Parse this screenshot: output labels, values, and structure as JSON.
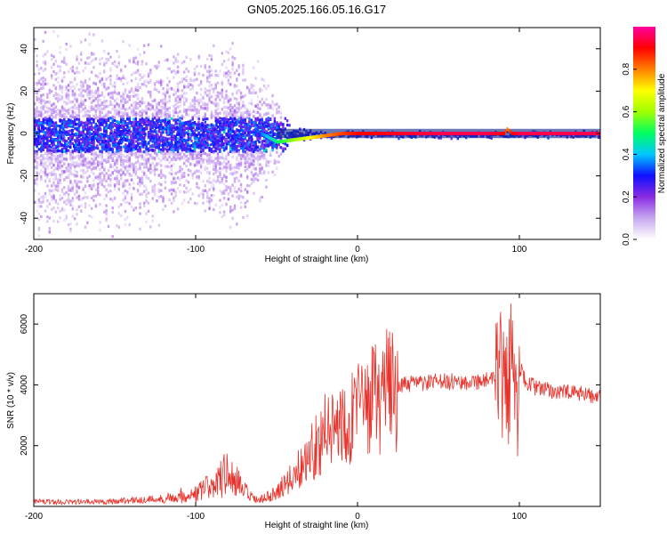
{
  "chart_data": [
    {
      "type": "heatmap",
      "title": "GN05.2025.166.05.16.G17",
      "xlabel": "Height of straight line (km)",
      "ylabel": "Frequency (Hz)",
      "xlim": [
        -200,
        150
      ],
      "ylim": [
        -50,
        50
      ],
      "x_ticks": [
        -200,
        -100,
        0,
        100
      ],
      "y_ticks": [
        -40,
        -20,
        0,
        20,
        40
      ],
      "grid": false,
      "colorbar": {
        "label": "Normalized spectral amplitude",
        "range": [
          0.0,
          1.0
        ],
        "ticks": [
          0.0,
          0.2,
          0.4,
          0.6,
          0.8
        ],
        "colors": [
          "#ffffff",
          "#c8a8f0",
          "#8a2be2",
          "#1010ff",
          "#00c8ff",
          "#00ff60",
          "#a0ff00",
          "#ffff00",
          "#ff8000",
          "#ff0000",
          "#ff00a0"
        ]
      },
      "ridge": {
        "x": [
          -200,
          -150,
          -100,
          -60,
          -50,
          -40,
          -30,
          -20,
          -10,
          0,
          50,
          80,
          90,
          92,
          95,
          100,
          150
        ],
        "frequency": [
          0,
          0,
          0,
          0,
          -4,
          -3,
          -2,
          -1,
          0,
          0,
          0,
          0,
          0,
          2,
          0,
          0,
          0
        ],
        "amplitude": [
          0.2,
          0.25,
          0.3,
          0.35,
          0.5,
          0.6,
          0.7,
          0.8,
          0.85,
          0.9,
          0.95,
          0.95,
          0.9,
          0.8,
          0.9,
          0.95,
          0.95
        ]
      },
      "scatter_extent": {
        "x": [
          -200,
          -150,
          -100,
          -80,
          -60,
          -50,
          -45,
          -40,
          -30,
          -20,
          0
        ],
        "frequency_halfwidth": [
          50,
          50,
          40,
          50,
          35,
          20,
          8,
          5,
          3,
          2,
          2
        ]
      }
    },
    {
      "type": "line",
      "xlabel": "Height of straight line (km)",
      "ylabel": "SNR (10 * v/v)",
      "xlim": [
        -200,
        150
      ],
      "ylim": [
        0,
        7000
      ],
      "x_ticks": [
        -200,
        -100,
        0,
        100
      ],
      "y_ticks": [
        2000,
        4000,
        6000
      ],
      "grid": false,
      "series": [
        {
          "color": "#e8312a",
          "x": [
            -200,
            -180,
            -160,
            -140,
            -120,
            -110,
            -100,
            -90,
            -85,
            -80,
            -75,
            -70,
            -65,
            -60,
            -55,
            -50,
            -45,
            -40,
            -35,
            -30,
            -25,
            -20,
            -15,
            -10,
            -5,
            0,
            5,
            10,
            15,
            20,
            25,
            30,
            35,
            40,
            50,
            60,
            70,
            80,
            85,
            90,
            93,
            95,
            97,
            98,
            99,
            100,
            105,
            110,
            120,
            130,
            140,
            150
          ],
          "y": [
            150,
            150,
            150,
            200,
            250,
            350,
            400,
            700,
            900,
            1100,
            800,
            500,
            250,
            200,
            300,
            500,
            700,
            1000,
            1300,
            1700,
            2100,
            2400,
            2600,
            2800,
            3000,
            3050,
            3300,
            3500,
            3700,
            3850,
            3950,
            4000,
            4050,
            4050,
            4100,
            4100,
            4100,
            4150,
            4150,
            4200,
            4300,
            4500,
            3500,
            2500,
            3000,
            4500,
            4100,
            3900,
            3800,
            3750,
            3700,
            3600
          ]
        }
      ]
    }
  ]
}
